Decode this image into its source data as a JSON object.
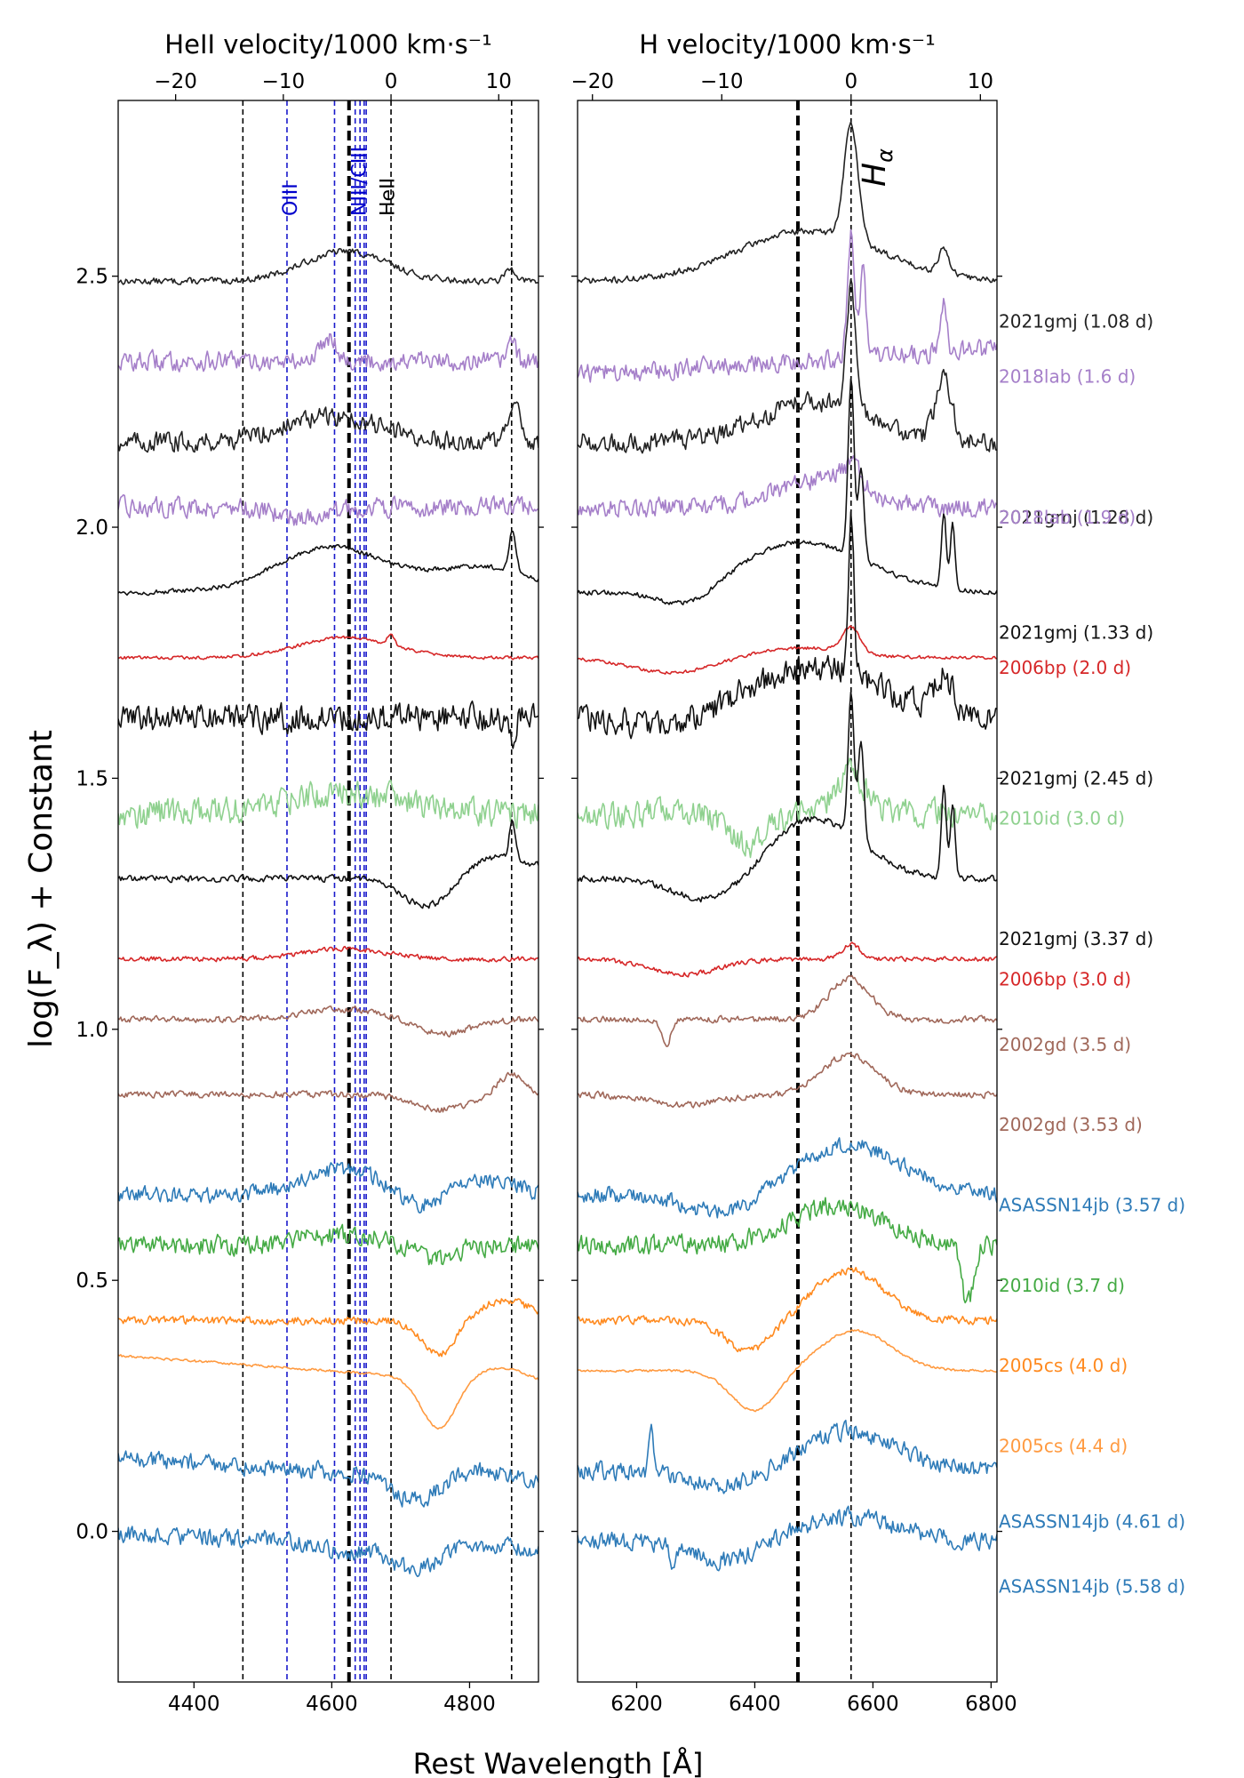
{
  "chart_data": {
    "type": "line",
    "ylabel": "log(F_λ) + Constant",
    "xlabel": "Rest Wavelength [Å]",
    "ylim": [
      -0.3,
      2.85
    ],
    "yticks": [
      0.0,
      0.5,
      1.0,
      1.5,
      2.0,
      2.5
    ],
    "left_panel": {
      "xlim": [
        4290,
        4900
      ],
      "xticks": [
        4400,
        4600,
        4800
      ],
      "top_axis_label": "HeII velocity/1000 km·s⁻¹",
      "top_ticks": [
        -20,
        -10,
        0,
        10
      ],
      "ref_wavelength": 4686,
      "black_dashed_lines": [
        4471,
        4686,
        4861
      ],
      "blue_dashed_lines": [
        4535,
        4604,
        4634,
        4641,
        4647,
        4650
      ],
      "thick_line": 4625,
      "line_labels": [
        {
          "text": "OIII",
          "wavelength": 4539,
          "color": "#0000cc"
        },
        {
          "text": "NIII/CIII",
          "wavelength": 4639,
          "color": "#0000cc"
        },
        {
          "text": "HeII",
          "wavelength": 4680,
          "color": "#000000"
        }
      ]
    },
    "right_panel": {
      "xlim": [
        6100,
        6810
      ],
      "xticks": [
        6200,
        6400,
        6600,
        6800
      ],
      "top_axis_label": "H velocity/1000 km·s⁻¹",
      "top_ticks": [
        -20,
        -10,
        0,
        10
      ],
      "ref_wavelength": 6563,
      "black_dashed_lines": [
        6563
      ],
      "thick_line": 6473,
      "line_label": "H_α"
    },
    "series": [
      {
        "name": "2021gmj (1.08 d)",
        "offset": 2.49,
        "color": "#222222",
        "noise": 0.004,
        "leftFeatures": [
          [
            4620,
            60,
            0.06
          ],
          [
            4860,
            8,
            0.025
          ]
        ],
        "rightFeatures": [
          [
            6563,
            12,
            0.23
          ],
          [
            6490,
            120,
            0.1
          ],
          [
            6720,
            9,
            0.05
          ]
        ],
        "leftTrend": 0.0,
        "rightTrend": 0.0,
        "labelY": 2.41
      },
      {
        "name": "2018lab (1.6 d)",
        "offset": 2.33,
        "color": "#a57fc9",
        "noise": 0.012,
        "leftFeatures": [
          [
            4595,
            12,
            0.05
          ],
          [
            4860,
            5,
            0.05
          ]
        ],
        "rightFeatures": [
          [
            6563,
            6,
            0.25
          ],
          [
            6583,
            5,
            0.18
          ],
          [
            6720,
            5,
            0.1
          ]
        ],
        "leftTrend": 0.0,
        "rightTrend": 0.05,
        "labelY": 2.3
      },
      {
        "name": "2021gmj (1.28 d)",
        "offset": 2.17,
        "color": "#222222",
        "noise": 0.012,
        "leftFeatures": [
          [
            4600,
            70,
            0.05
          ],
          [
            4865,
            10,
            0.06
          ]
        ],
        "rightFeatures": [
          [
            6563,
            8,
            0.25
          ],
          [
            6720,
            14,
            0.12
          ],
          [
            6500,
            90,
            0.08
          ]
        ],
        "leftTrend": 0.0,
        "rightTrend": 0.0,
        "labelY": 2.02
      },
      {
        "name": "2018lab (1.9 d)",
        "offset": 2.04,
        "color": "#a57fc9",
        "noise": 0.012,
        "leftFeatures": [
          [
            4560,
            40,
            -0.02
          ]
        ],
        "rightFeatures": [
          [
            6563,
            20,
            0.05
          ],
          [
            6500,
            70,
            0.05
          ]
        ],
        "leftTrend": 0.0,
        "rightTrend": 0.0,
        "labelY": 2.02
      },
      {
        "name": "2021gmj (1.33 d)",
        "offset": 1.87,
        "color": "#111111",
        "noise": 0.003,
        "leftFeatures": [
          [
            4600,
            80,
            0.09
          ],
          [
            4820,
            70,
            0.05
          ],
          [
            4862,
            5,
            0.08
          ]
        ],
        "rightFeatures": [
          [
            6563,
            5,
            0.35
          ],
          [
            6580,
            5,
            0.18
          ],
          [
            6720,
            4,
            0.15
          ],
          [
            6735,
            4,
            0.13
          ],
          [
            6480,
            110,
            0.1
          ],
          [
            6290,
            50,
            -0.04
          ]
        ],
        "leftTrend": 0.0,
        "rightTrend": 0.0,
        "labelY": 1.79
      },
      {
        "name": "2006bp (2.0 d)",
        "offset": 1.74,
        "color": "#d62728",
        "noise": 0.002,
        "leftFeatures": [
          [
            4620,
            70,
            0.04
          ],
          [
            4686,
            5,
            0.02
          ]
        ],
        "rightFeatures": [
          [
            6563,
            15,
            0.05
          ],
          [
            6260,
            70,
            -0.03
          ],
          [
            6480,
            80,
            0.02
          ]
        ],
        "leftTrend": 0.0,
        "rightTrend": 0.0,
        "labelY": 1.72
      },
      {
        "name": "2021gmj (2.45 d)",
        "offset": 1.62,
        "color": "#111111",
        "noise": 0.017,
        "leftFeatures": [
          [
            4862,
            4,
            -0.06
          ]
        ],
        "rightFeatures": [
          [
            6563,
            5,
            0.32
          ],
          [
            6500,
            110,
            0.1
          ],
          [
            6720,
            15,
            0.07
          ],
          [
            6260,
            60,
            -0.02
          ]
        ],
        "leftTrend": 0.0,
        "rightTrend": 0.0,
        "labelY": 1.5
      },
      {
        "name": "2010id (3.0 d)",
        "offset": 1.43,
        "color": "#8fd18f",
        "noise": 0.017,
        "leftFeatures": [
          [
            4620,
            90,
            0.04
          ]
        ],
        "rightFeatures": [
          [
            6560,
            25,
            0.08
          ],
          [
            6390,
            30,
            -0.06
          ]
        ],
        "leftTrend": 0.0,
        "rightTrend": 0.0,
        "labelY": 1.42
      },
      {
        "name": "2021gmj (3.37 d)",
        "offset": 1.3,
        "color": "#111111",
        "noise": 0.004,
        "leftFeatures": [
          [
            4745,
            40,
            -0.08
          ],
          [
            4820,
            70,
            0.05
          ],
          [
            4862,
            4,
            0.08
          ]
        ],
        "rightFeatures": [
          [
            6563,
            5,
            0.28
          ],
          [
            6580,
            5,
            0.2
          ],
          [
            6720,
            4,
            0.18
          ],
          [
            6735,
            4,
            0.15
          ],
          [
            6500,
            80,
            0.12
          ],
          [
            6330,
            60,
            -0.05
          ]
        ],
        "leftTrend": 0.0,
        "rightTrend": 0.0,
        "labelY": 1.18
      },
      {
        "name": "2006bp (3.0 d)",
        "offset": 1.14,
        "color": "#d62728",
        "noise": 0.003,
        "leftFeatures": [
          [
            4620,
            60,
            0.02
          ]
        ],
        "rightFeatures": [
          [
            6563,
            15,
            0.03
          ],
          [
            6280,
            60,
            -0.03
          ]
        ],
        "leftTrend": 0.0,
        "rightTrend": 0.0,
        "labelY": 1.1
      },
      {
        "name": "2002gd (3.5 d)",
        "offset": 1.02,
        "color": "#a0685a",
        "noise": 0.004,
        "leftFeatures": [
          [
            4760,
            40,
            -0.03
          ],
          [
            4620,
            60,
            0.02
          ]
        ],
        "rightFeatures": [
          [
            6560,
            35,
            0.08
          ],
          [
            6250,
            8,
            -0.05
          ]
        ],
        "leftTrend": 0.0,
        "rightTrend": 0.0,
        "labelY": 0.97
      },
      {
        "name": "2002gd (3.53 d)",
        "offset": 0.87,
        "color": "#a0685a",
        "noise": 0.004,
        "leftFeatures": [
          [
            4760,
            40,
            -0.03
          ],
          [
            4860,
            20,
            0.04
          ]
        ],
        "rightFeatures": [
          [
            6560,
            45,
            0.08
          ],
          [
            6280,
            60,
            -0.02
          ]
        ],
        "leftTrend": 0.0,
        "rightTrend": 0.0,
        "labelY": 0.81
      },
      {
        "name": "ASASSN14jb (3.57 d)",
        "offset": 0.67,
        "color": "#2e7bb8",
        "noise": 0.01,
        "leftFeatures": [
          [
            4620,
            60,
            0.05
          ],
          [
            4720,
            30,
            -0.03
          ],
          [
            4830,
            40,
            0.03
          ]
        ],
        "rightFeatures": [
          [
            6560,
            90,
            0.1
          ],
          [
            6350,
            60,
            -0.04
          ]
        ],
        "leftTrend": 0.0,
        "rightTrend": 0.0,
        "labelY": 0.65
      },
      {
        "name": "2010id (3.7 d)",
        "offset": 0.57,
        "color": "#44aa44",
        "noise": 0.012,
        "leftFeatures": [
          [
            4620,
            60,
            0.02
          ],
          [
            4750,
            30,
            -0.03
          ]
        ],
        "rightFeatures": [
          [
            6540,
            80,
            0.08
          ],
          [
            6760,
            10,
            -0.12
          ]
        ],
        "leftTrend": 0.0,
        "rightTrend": 0.0,
        "labelY": 0.49
      },
      {
        "name": "2005cs (4.0 d)",
        "offset": 0.42,
        "color": "#ff8a1f",
        "noise": 0.005,
        "leftFeatures": [
          [
            4755,
            25,
            -0.07
          ],
          [
            4850,
            40,
            0.04
          ]
        ],
        "rightFeatures": [
          [
            6560,
            60,
            0.1
          ],
          [
            6390,
            40,
            -0.06
          ]
        ],
        "leftTrend": 0.0,
        "rightTrend": 0.0,
        "labelY": 0.33
      },
      {
        "name": "2005cs (4.4 d)",
        "offset": 0.32,
        "color": "#ff9a40",
        "noise": 0.0015,
        "leftFeatures": [
          [
            4755,
            25,
            -0.1
          ],
          [
            4850,
            40,
            0.03
          ]
        ],
        "rightFeatures": [
          [
            6570,
            60,
            0.08
          ],
          [
            6400,
            40,
            -0.08
          ]
        ],
        "leftTrend": -0.06,
        "rightTrend": 0.0,
        "labelY": 0.17
      },
      {
        "name": "ASASSN14jb (4.61 d)",
        "offset": 0.12,
        "color": "#2e7bb8",
        "noise": 0.011,
        "leftFeatures": [
          [
            4720,
            30,
            -0.05
          ],
          [
            4830,
            40,
            0.02
          ]
        ],
        "rightFeatures": [
          [
            6560,
            80,
            0.08
          ],
          [
            6350,
            60,
            -0.03
          ],
          [
            6225,
            4,
            0.08
          ]
        ],
        "leftTrend": -0.05,
        "rightTrend": 0.0,
        "labelY": 0.02
      },
      {
        "name": "ASASSN14jb (5.58 d)",
        "offset": -0.02,
        "color": "#2e7bb8",
        "noise": 0.011,
        "leftFeatures": [
          [
            4720,
            30,
            -0.05
          ],
          [
            4620,
            40,
            -0.02
          ]
        ],
        "rightFeatures": [
          [
            6560,
            80,
            0.05
          ],
          [
            6350,
            50,
            -0.04
          ],
          [
            6260,
            4,
            -0.05
          ]
        ],
        "leftTrend": -0.03,
        "rightTrend": 0.0,
        "labelY": -0.11
      }
    ]
  }
}
